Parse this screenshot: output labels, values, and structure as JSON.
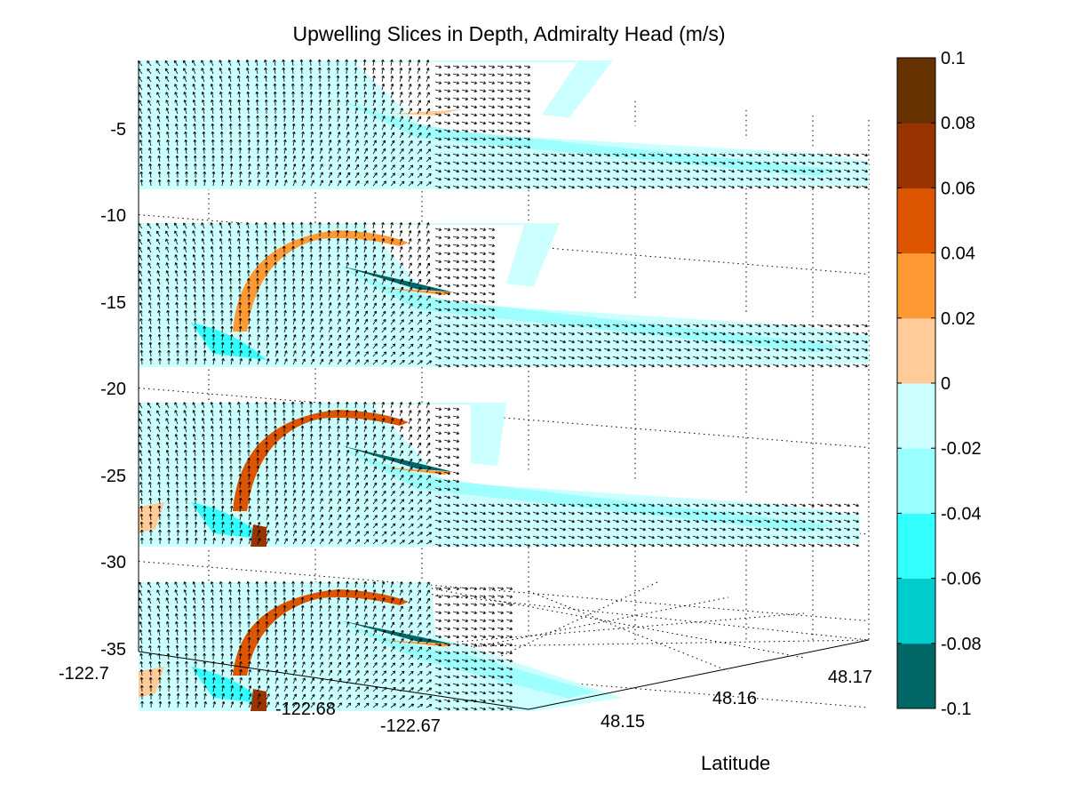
{
  "chart_data": {
    "type": "heatmap",
    "title": "Upwelling Slices in Depth, Admiralty Head (m/s)",
    "xlabel": "",
    "ylabel": "Latitude",
    "zlabel": "",
    "projection": "3d-slices",
    "depth_ticks": [
      "-5",
      "-10",
      "-15",
      "-20",
      "-25",
      "-30",
      "-35"
    ],
    "depth_ticks_numeric": [
      -5,
      -10,
      -15,
      -20,
      -25,
      -30,
      -35
    ],
    "longitude_ticks": [
      "-122.7",
      "-122.68",
      "-122.67"
    ],
    "latitude_ticks": [
      "48.15",
      "48.16",
      "48.17"
    ],
    "slice_depths": [
      -2,
      -12,
      -22,
      -32
    ],
    "colorbar": {
      "ticks": [
        "0.1",
        "0.08",
        "0.06",
        "0.04",
        "0.02",
        "0",
        "-0.02",
        "-0.04",
        "-0.06",
        "-0.08",
        "-0.1"
      ],
      "range": [
        -0.1,
        0.1
      ],
      "colors": [
        "#006666",
        "#00cccc",
        "#33ffff",
        "#99ffff",
        "#ccffff",
        "#ffcc99",
        "#ff9933",
        "#dd5500",
        "#993300",
        "#663300"
      ]
    },
    "grid": true,
    "overlay": "horizontal velocity vectors (quiver)"
  }
}
